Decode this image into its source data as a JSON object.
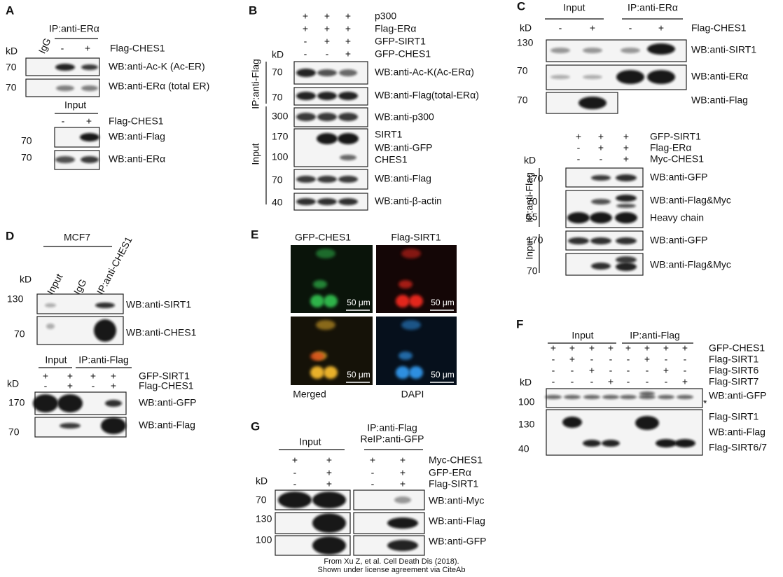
{
  "panels": {
    "A": {
      "label": "A",
      "ip_header": "IP:anti-ERα",
      "lane_header": "IgG",
      "kd": "kD",
      "treatment": [
        {
          "name": "Flag-CHES1",
          "signs": [
            "-",
            "+"
          ]
        }
      ],
      "blots": [
        {
          "mw": [
            "70"
          ],
          "wb": [
            "WB:anti-Ac-K (Ac-ER)"
          ]
        },
        {
          "mw": [
            "70"
          ],
          "wb": [
            "WB:anti-ERα (total ER)"
          ]
        }
      ],
      "input": {
        "header": "Input",
        "treatment": [
          {
            "name": "Flag-CHES1",
            "signs": [
              "-",
              "+"
            ]
          }
        ],
        "blots": [
          {
            "mw": [
              "70"
            ],
            "wb": [
              "WB:anti-Flag"
            ]
          },
          {
            "mw": [
              "70"
            ],
            "wb": [
              "WB:anti-ERα"
            ]
          }
        ]
      }
    },
    "B": {
      "label": "B",
      "kd": "kD",
      "side": [
        "IP:anti-Flag",
        "Input"
      ],
      "treatment": [
        {
          "name": "p300",
          "signs": [
            "+",
            "+",
            "+"
          ]
        },
        {
          "name": "Flag-ERα",
          "signs": [
            "+",
            "+",
            "+"
          ]
        },
        {
          "name": "GFP-SIRT1",
          "signs": [
            "-",
            "+",
            "+"
          ]
        },
        {
          "name": "GFP-CHES1",
          "signs": [
            "-",
            "-",
            "+"
          ]
        }
      ],
      "blots": [
        {
          "mw": [
            "70"
          ],
          "wb": [
            "WB:anti-Ac-K(Ac-ERα)"
          ]
        },
        {
          "mw": [
            "70"
          ],
          "wb": [
            "WB:anti-Flag(total-ERα)"
          ]
        },
        {
          "mw": [
            "300"
          ],
          "wb": [
            "WB:anti-p300"
          ]
        },
        {
          "mw": [
            "170",
            "100"
          ],
          "wb": [
            "SIRT1",
            "WB:anti-GFP",
            "CHES1"
          ]
        },
        {
          "mw": [
            "70"
          ],
          "wb": [
            "WB:anti-Flag"
          ]
        },
        {
          "mw": [
            "40"
          ],
          "wb": [
            "WB:anti-β-actin"
          ]
        }
      ]
    },
    "C": {
      "label": "C",
      "headers": [
        "Input",
        "IP:anti-ERα"
      ],
      "kd": "kD",
      "treatment": [
        {
          "name": "Flag-CHES1",
          "signs": [
            "-",
            "+",
            "-",
            "+"
          ]
        }
      ],
      "blots": [
        {
          "mw": [
            "130"
          ],
          "wb": [
            "WB:anti-SIRT1"
          ]
        },
        {
          "mw": [
            "70"
          ],
          "wb": [
            "WB:anti-ERα"
          ]
        },
        {
          "mw": [
            "70"
          ],
          "wb": [
            "WB:anti-Flag"
          ]
        }
      ],
      "lower": {
        "kd": "kD",
        "side": [
          "IP:anti-Flag",
          "Input"
        ],
        "treatment": [
          {
            "name": "GFP-SIRT1",
            "signs": [
              "+",
              "+",
              "+"
            ]
          },
          {
            "name": "Flag-ERα",
            "signs": [
              "-",
              "+",
              "+"
            ]
          },
          {
            "name": "Myc-CHES1",
            "signs": [
              "-",
              "-",
              "+"
            ]
          }
        ],
        "blots": [
          {
            "mw": [
              "170"
            ],
            "wb": [
              "WB:anti-GFP"
            ]
          },
          {
            "mw": [
              "70",
              "55"
            ],
            "wb": [
              "WB:anti-Flag&Myc",
              "Heavy chain"
            ]
          },
          {
            "mw": [
              "170"
            ],
            "wb": [
              "WB:anti-GFP"
            ]
          },
          {
            "mw": [
              "70"
            ],
            "wb": [
              "WB:anti-Flag&Myc"
            ]
          }
        ]
      }
    },
    "D": {
      "label": "D",
      "cell": "MCF7",
      "kd": "kD",
      "lanes": [
        "Input",
        "IgG",
        "IP:anti-CHES1"
      ],
      "blots": [
        {
          "mw": [
            "130"
          ],
          "wb": [
            "WB:anti-SIRT1"
          ]
        },
        {
          "mw": [
            "70"
          ],
          "wb": [
            "WB:anti-CHES1"
          ]
        }
      ],
      "lower": {
        "headers": [
          "Input",
          "IP:anti-Flag"
        ],
        "kd": "kD",
        "treatment": [
          {
            "name": "GFP-SIRT1",
            "signs": [
              "+",
              "+",
              "+",
              "+"
            ]
          },
          {
            "name": "Flag-CHES1",
            "signs": [
              "-",
              "+",
              "-",
              "+"
            ]
          }
        ],
        "blots": [
          {
            "mw": [
              "170"
            ],
            "wb": [
              "WB:anti-GFP"
            ]
          },
          {
            "mw": [
              "70"
            ],
            "wb": [
              "WB:anti-Flag"
            ]
          }
        ]
      }
    },
    "E": {
      "label": "E",
      "titles": [
        "GFP-CHES1",
        "Flag-SIRT1"
      ],
      "captions": [
        "Merged",
        "DAPI"
      ],
      "scales": [
        "50 μm",
        "50 μm",
        "50 μm",
        "50 μm"
      ]
    },
    "F": {
      "label": "F",
      "headers": [
        "Input",
        "IP:anti-Flag"
      ],
      "kd": "kD",
      "treatment": [
        {
          "name": "GFP-CHES1",
          "signs": [
            "+",
            "+",
            "+",
            "+",
            "+",
            "+",
            "+",
            "+"
          ]
        },
        {
          "name": "Flag-SIRT1",
          "signs": [
            "-",
            "+",
            "-",
            "-",
            "-",
            "+",
            "-",
            "-"
          ]
        },
        {
          "name": "Flag-SIRT6",
          "signs": [
            "-",
            "-",
            "+",
            "-",
            "-",
            "-",
            "+",
            "-"
          ]
        },
        {
          "name": "Flag-SIRT7",
          "signs": [
            "-",
            "-",
            "-",
            "+",
            "-",
            "-",
            "-",
            "+"
          ]
        }
      ],
      "blots": [
        {
          "mw": [
            "100"
          ],
          "wb": [
            "WB:anti-GFP"
          ],
          "mark": "*"
        },
        {
          "mw": [
            "130",
            "40"
          ],
          "wb": [
            "Flag-SIRT1",
            "WB:anti-Flag",
            "Flag-SIRT6/7"
          ]
        }
      ]
    },
    "G": {
      "label": "G",
      "input_header": "Input",
      "ip_header": [
        "IP:anti-Flag",
        "ReIP:anti-GFP"
      ],
      "kd": "kD",
      "treatment": [
        {
          "name": "Myc-CHES1",
          "signs": [
            "+",
            "+",
            "+",
            "+"
          ]
        },
        {
          "name": "GFP-ERα",
          "signs": [
            "-",
            "+",
            "-",
            "+"
          ]
        },
        {
          "name": "Flag-SIRT1",
          "signs": [
            "-",
            "+",
            "-",
            "+"
          ]
        }
      ],
      "blots": [
        {
          "mw": [
            "70"
          ],
          "wb": [
            "WB:anti-Myc"
          ]
        },
        {
          "mw": [
            "130"
          ],
          "wb": [
            "WB:anti-Flag"
          ]
        },
        {
          "mw": [
            "100"
          ],
          "wb": [
            "WB:anti-GFP"
          ]
        }
      ]
    }
  },
  "credit": [
    "From Xu Z, et al. Cell Death Dis (2018).",
    "Shown under license agreement via CiteAb"
  ]
}
